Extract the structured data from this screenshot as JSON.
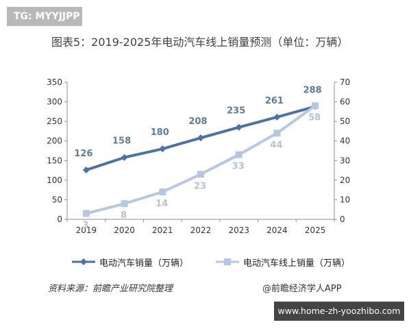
{
  "top_tag": "TG: MYYJJPP",
  "footer_tag": "www.home-zh-yoozhibo.com",
  "source": "资料来源：前瞻产业研究院整理",
  "brand": "@前瞻经济学人APP",
  "chart_data": {
    "type": "line",
    "title": "图表5：2019-2025年电动汽车线上销量预测（单位：万辆）",
    "categories": [
      "2019",
      "2020",
      "2021",
      "2022",
      "2023",
      "2024",
      "2025"
    ],
    "y_left": {
      "min": 0,
      "max": 350,
      "ticks": [
        0,
        50,
        100,
        150,
        200,
        250,
        300,
        350
      ]
    },
    "y_right": {
      "min": 0,
      "max": 70,
      "ticks": [
        0,
        10,
        20,
        30,
        40,
        50,
        60,
        70
      ]
    },
    "series": [
      {
        "name": "电动汽车销量（万辆）",
        "axis": "left",
        "color": "#4a72a8",
        "marker": "diamond",
        "values": [
          126,
          158,
          180,
          208,
          235,
          261,
          288
        ]
      },
      {
        "name": "电动汽车线上销量（万辆）",
        "axis": "right",
        "color": "#b4c7e7",
        "marker": "square",
        "values": [
          3,
          8,
          14,
          23,
          33,
          44,
          58
        ]
      }
    ]
  }
}
